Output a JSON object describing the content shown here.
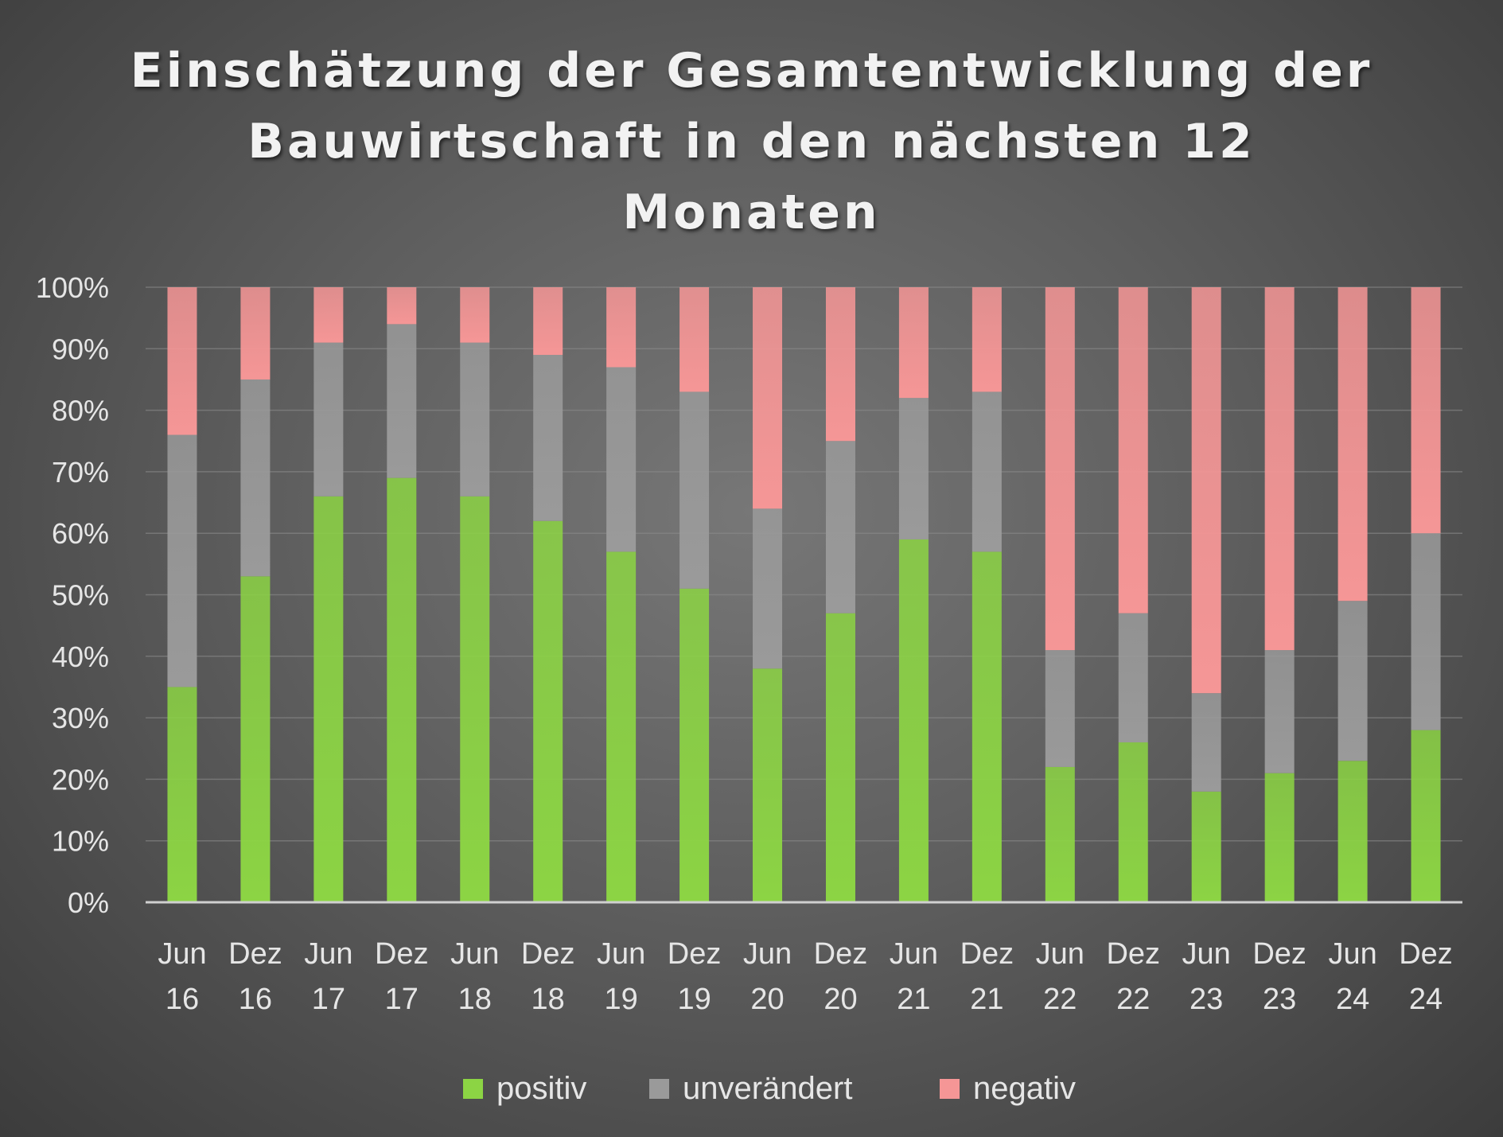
{
  "chart_data": {
    "type": "bar",
    "stacked": true,
    "title_lines": [
      "Einschätzung der Gesamtentwicklung der",
      "Bauwirtschaft in den nächsten 12",
      "Monaten"
    ],
    "categories": [
      [
        "Jun",
        "16"
      ],
      [
        "Dez",
        "16"
      ],
      [
        "Jun",
        "17"
      ],
      [
        "Dez",
        "17"
      ],
      [
        "Jun",
        "18"
      ],
      [
        "Dez",
        "18"
      ],
      [
        "Jun",
        "19"
      ],
      [
        "Dez",
        "19"
      ],
      [
        "Jun",
        "20"
      ],
      [
        "Dez",
        "20"
      ],
      [
        "Jun",
        "21"
      ],
      [
        "Dez",
        "21"
      ],
      [
        "Jun",
        "22"
      ],
      [
        "Dez",
        "22"
      ],
      [
        "Jun",
        "23"
      ],
      [
        "Dez",
        "23"
      ],
      [
        "Jun",
        "24"
      ],
      [
        "Dez",
        "24"
      ]
    ],
    "series": [
      {
        "name": "positiv",
        "color": "#8cd444",
        "values": [
          35,
          53,
          66,
          69,
          66,
          62,
          57,
          51,
          38,
          47,
          59,
          57,
          22,
          26,
          18,
          21,
          23,
          28
        ]
      },
      {
        "name": "unverändert",
        "color": "#9a9a9a",
        "values": [
          41,
          32,
          25,
          25,
          25,
          27,
          30,
          32,
          26,
          28,
          23,
          26,
          19,
          21,
          16,
          20,
          26,
          32
        ]
      },
      {
        "name": "negativ",
        "color": "#f59696",
        "values": [
          24,
          15,
          9,
          6,
          9,
          11,
          13,
          17,
          36,
          25,
          18,
          17,
          59,
          53,
          66,
          59,
          51,
          40
        ]
      }
    ],
    "y_ticks": [
      "0%",
      "10%",
      "20%",
      "30%",
      "40%",
      "50%",
      "60%",
      "70%",
      "80%",
      "90%",
      "100%"
    ],
    "ylim": [
      0,
      100
    ],
    "grid": true,
    "legend_position": "bottom"
  }
}
